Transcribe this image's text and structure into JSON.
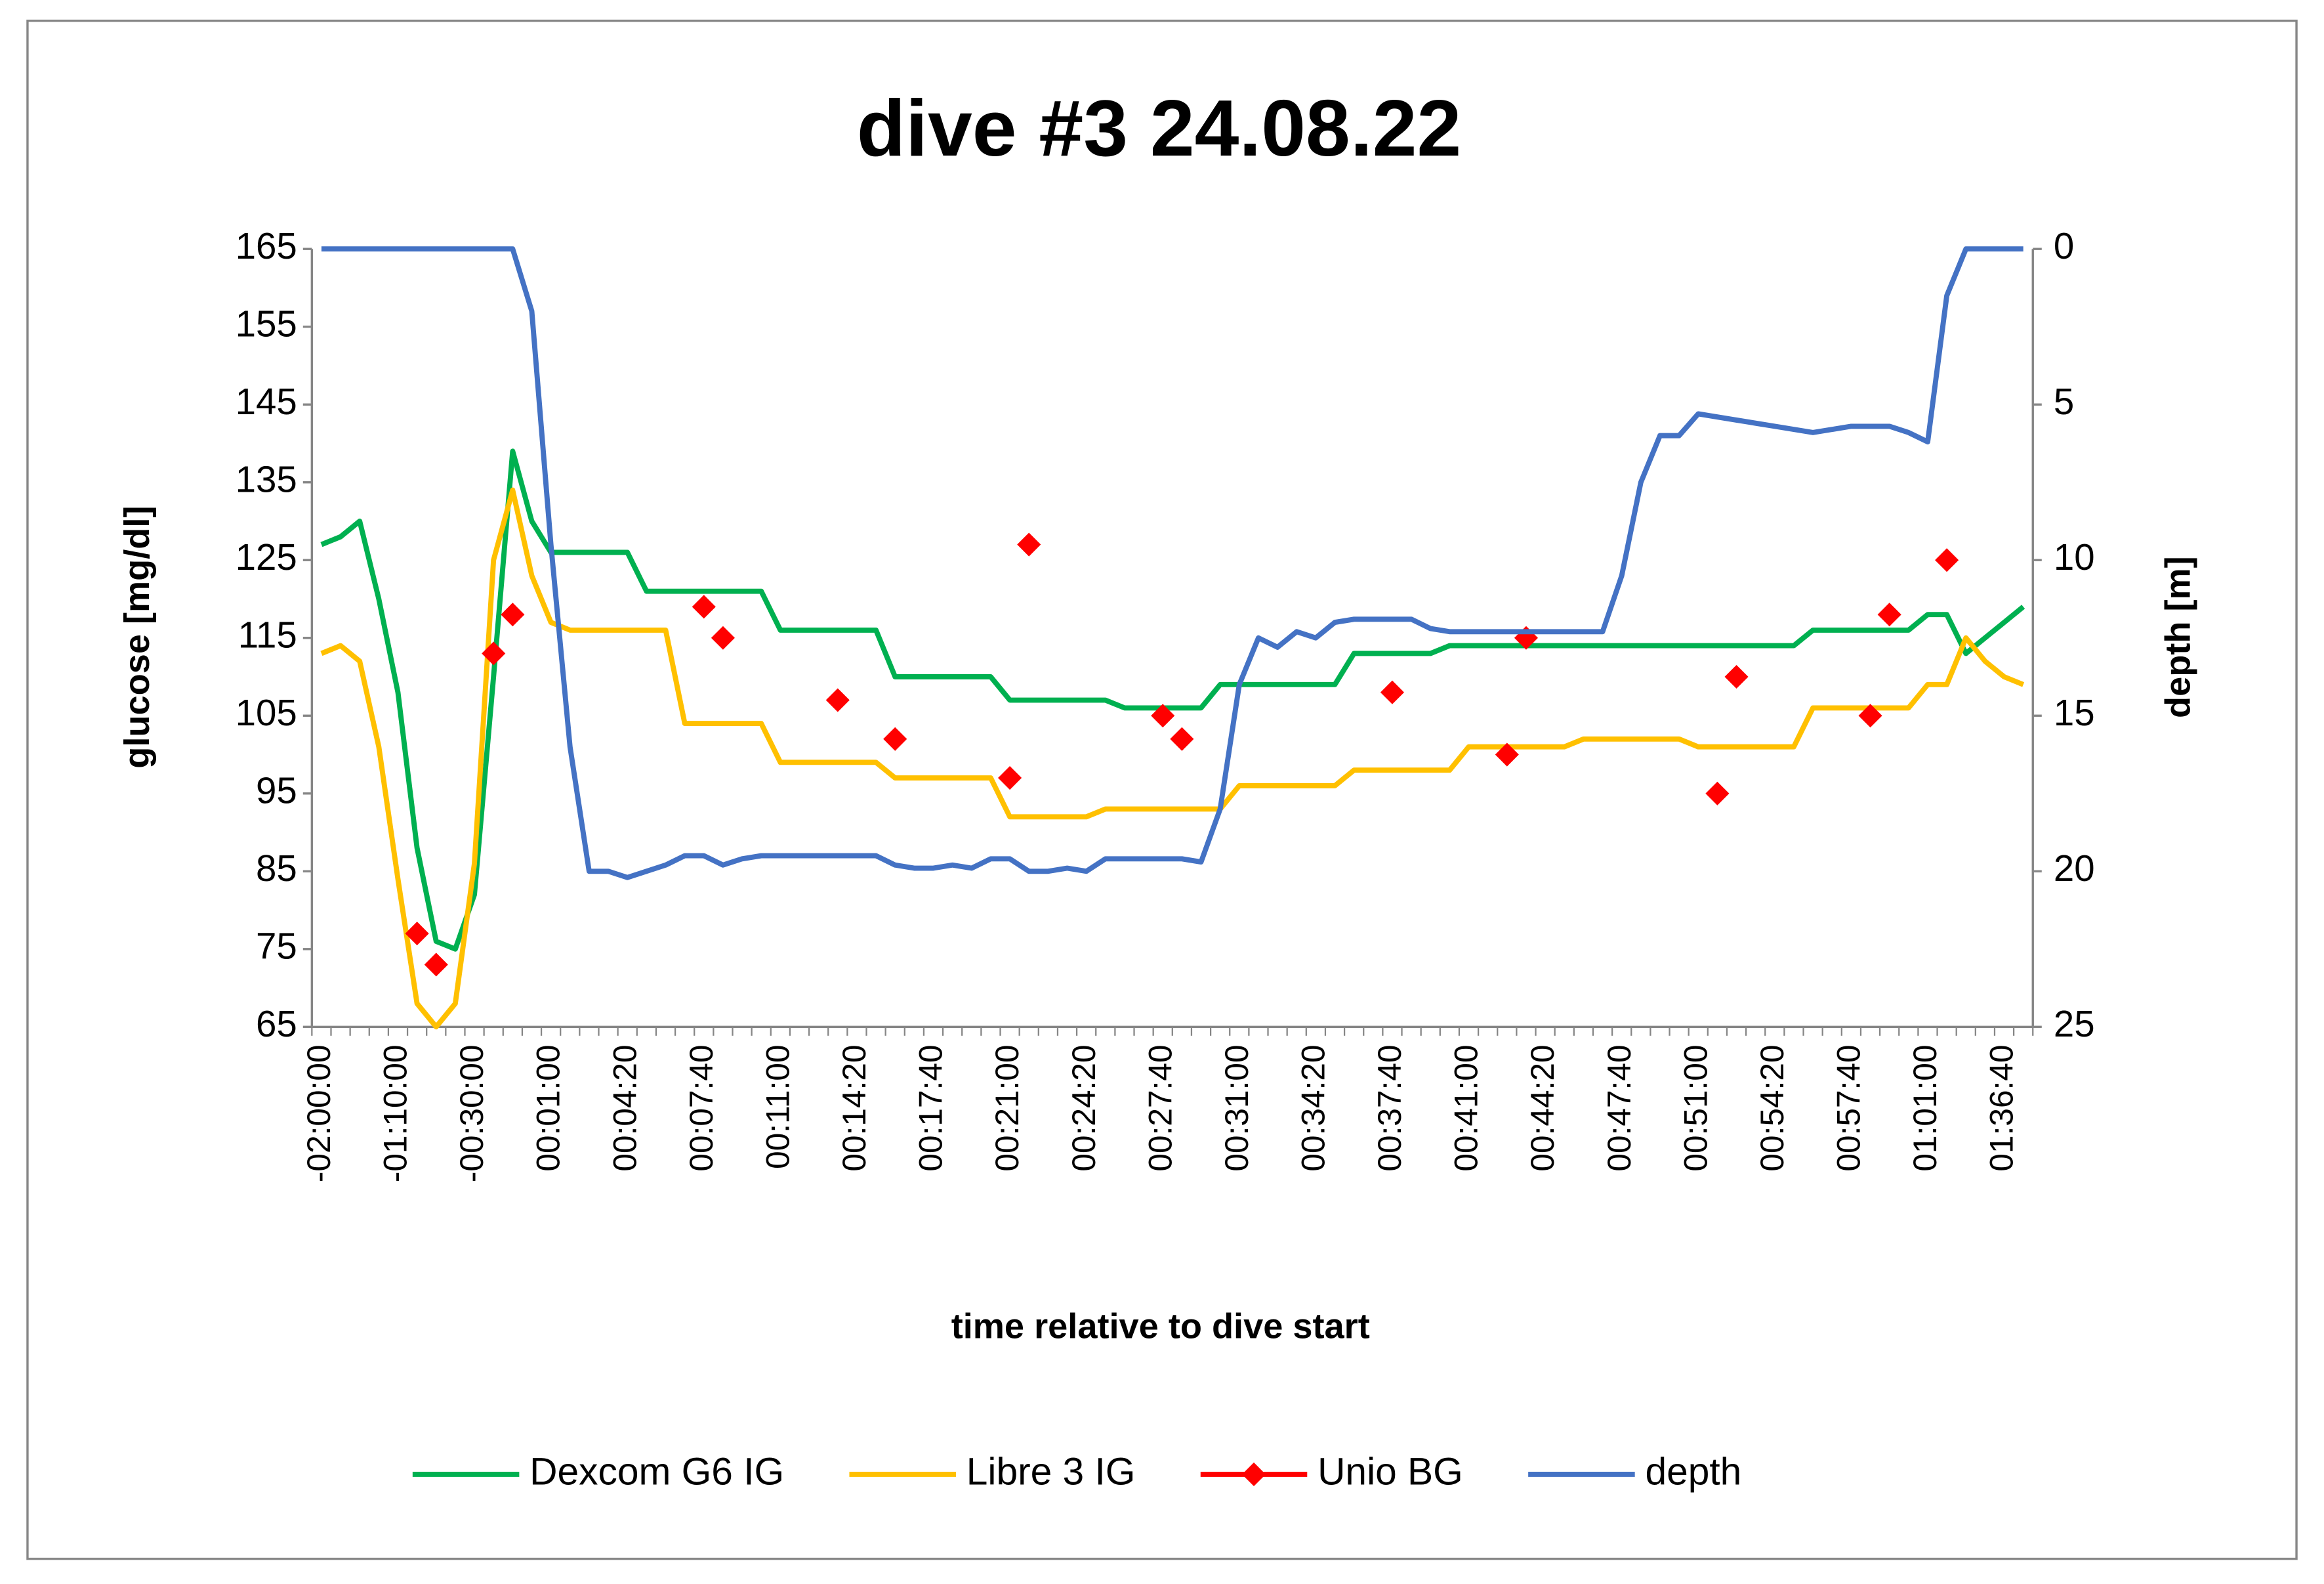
{
  "chart_data": {
    "type": "line",
    "title": "dive #3 24.08.22",
    "x_label": "time relative to dive start",
    "y_label": "glucose [mg/dl]",
    "y2_label": "depth [m]",
    "categories": [
      "-02:00:00",
      null,
      null,
      null,
      "-01:10:00",
      null,
      null,
      null,
      "-00:30:00",
      null,
      null,
      null,
      "00:01:00",
      null,
      null,
      null,
      "00:04:20",
      null,
      null,
      null,
      "00:07:40",
      null,
      null,
      null,
      "00:11:00",
      null,
      null,
      null,
      "00:14:20",
      null,
      null,
      null,
      "00:17:40",
      null,
      null,
      null,
      "00:21:00",
      null,
      null,
      null,
      "00:24:20",
      null,
      null,
      null,
      "00:27:40",
      null,
      null,
      null,
      "00:31:00",
      null,
      null,
      null,
      "00:34:20",
      null,
      null,
      null,
      "00:37:40",
      null,
      null,
      null,
      "00:41:00",
      null,
      null,
      null,
      "00:44:20",
      null,
      null,
      null,
      "00:47:40",
      null,
      null,
      null,
      "00:51:00",
      null,
      null,
      null,
      "00:54:20",
      null,
      null,
      null,
      "00:57:40",
      null,
      null,
      null,
      "01:01:00",
      null,
      null,
      null,
      "01:36:40",
      null
    ],
    "ylim": [
      65,
      165
    ],
    "yticks": [
      65,
      75,
      85,
      95,
      105,
      115,
      125,
      135,
      145,
      155,
      165
    ],
    "y2lim": [
      25,
      0
    ],
    "y2ticks": [
      0,
      5,
      10,
      15,
      20,
      25
    ],
    "grid": false,
    "legend": "bottom",
    "series": [
      {
        "name": "Dexcom G6 IG",
        "color": "#00b050",
        "line": true,
        "marker": "none",
        "values": [
          127,
          128,
          130,
          120,
          108,
          88,
          76,
          75,
          82,
          110,
          139,
          130,
          126,
          126,
          126,
          126,
          126,
          121,
          121,
          121,
          121,
          121,
          121,
          121,
          116,
          116,
          116,
          116,
          116,
          116,
          110,
          110,
          110,
          110,
          110,
          110,
          107,
          107,
          107,
          107,
          107,
          107,
          106,
          106,
          106,
          106,
          106,
          109,
          109,
          109,
          109,
          109,
          109,
          109,
          113,
          113,
          113,
          113,
          113,
          114,
          114,
          114,
          114,
          114,
          114,
          114,
          114,
          114,
          114,
          114,
          114,
          114,
          114,
          114,
          114,
          114,
          114,
          114,
          116,
          116,
          116,
          116,
          116,
          116,
          118,
          118,
          113,
          115,
          117,
          119
        ]
      },
      {
        "name": "Libre 3 IG",
        "color": "#ffc000",
        "line": true,
        "marker": "none",
        "values": [
          113,
          114,
          112,
          101,
          84,
          68,
          65,
          68,
          86,
          125,
          134,
          123,
          117,
          116,
          116,
          116,
          116,
          116,
          116,
          104,
          104,
          104,
          104,
          104,
          99,
          99,
          99,
          99,
          99,
          99,
          97,
          97,
          97,
          97,
          97,
          97,
          92,
          92,
          92,
          92,
          92,
          93,
          93,
          93,
          93,
          93,
          93,
          93,
          96,
          96,
          96,
          96,
          96,
          96,
          98,
          98,
          98,
          98,
          98,
          98,
          101,
          101,
          101,
          101,
          101,
          101,
          102,
          102,
          102,
          102,
          102,
          102,
          101,
          101,
          101,
          101,
          101,
          101,
          106,
          106,
          106,
          106,
          106,
          106,
          109,
          109,
          115,
          112,
          110,
          109
        ]
      },
      {
        "name": "Unio BG",
        "color": "#ff0000",
        "line": false,
        "marker": "diamond",
        "values": [
          null,
          null,
          null,
          null,
          null,
          77,
          73,
          null,
          null,
          113,
          118,
          null,
          null,
          null,
          null,
          null,
          null,
          null,
          null,
          null,
          119,
          115,
          null,
          null,
          null,
          null,
          null,
          107,
          null,
          null,
          102,
          null,
          null,
          null,
          null,
          null,
          97,
          127,
          null,
          null,
          null,
          null,
          null,
          null,
          105,
          102,
          null,
          null,
          null,
          null,
          null,
          null,
          null,
          null,
          null,
          null,
          108,
          null,
          null,
          null,
          null,
          null,
          100,
          115,
          null,
          null,
          null,
          null,
          null,
          null,
          null,
          null,
          null,
          95,
          110,
          null,
          null,
          null,
          null,
          null,
          null,
          105,
          118,
          null,
          null,
          125,
          null,
          null,
          null,
          null
        ]
      },
      {
        "name": "depth",
        "color": "#4472c4",
        "line": true,
        "marker": "none",
        "axis": "y2",
        "values": [
          0,
          0,
          0,
          0,
          0,
          0,
          0,
          0,
          0,
          0,
          0,
          2,
          9.5,
          16,
          20,
          20,
          20.2,
          20,
          19.8,
          19.5,
          19.5,
          19.8,
          19.6,
          19.5,
          19.5,
          19.5,
          19.5,
          19.5,
          19.5,
          19.5,
          19.8,
          19.9,
          19.9,
          19.8,
          19.9,
          19.6,
          19.6,
          20,
          20,
          19.9,
          20,
          19.6,
          19.6,
          19.6,
          19.6,
          19.6,
          19.7,
          18,
          14,
          12.5,
          12.8,
          12.3,
          12.5,
          12,
          11.9,
          11.9,
          11.9,
          11.9,
          12.2,
          12.3,
          12.3,
          12.3,
          12.3,
          12.3,
          12.3,
          12.3,
          12.3,
          12.3,
          10.5,
          7.5,
          6,
          6,
          5.3,
          5.4,
          5.5,
          5.6,
          5.7,
          5.8,
          5.9,
          5.8,
          5.7,
          5.7,
          5.7,
          5.9,
          6.2,
          1.5,
          0,
          0,
          0,
          0
        ]
      }
    ]
  }
}
